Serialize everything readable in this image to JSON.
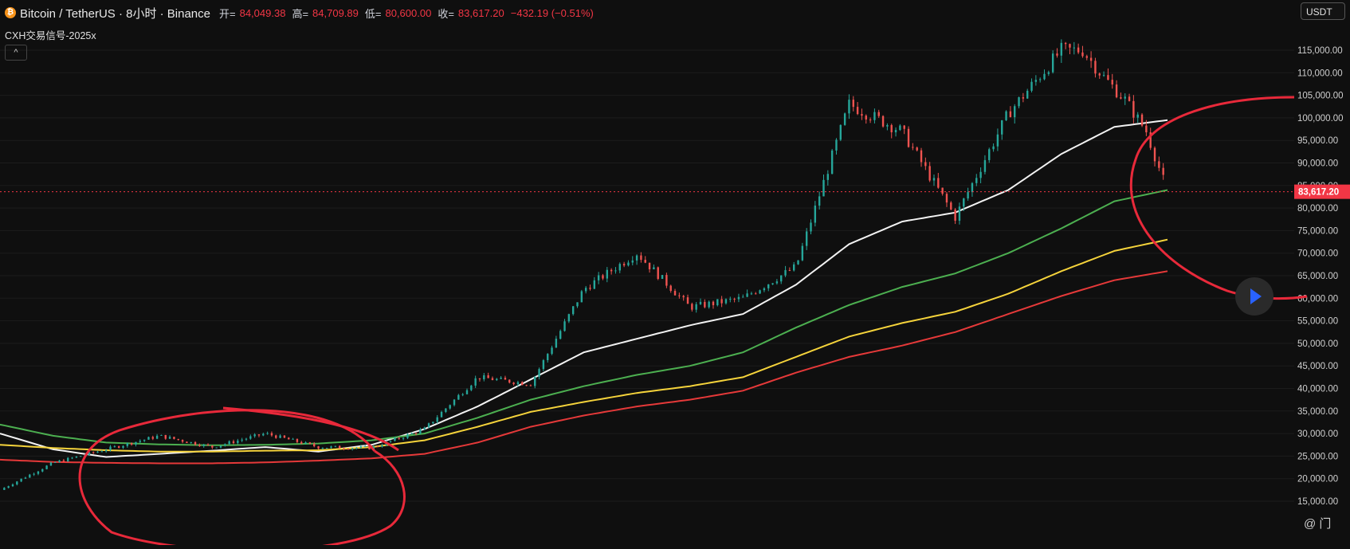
{
  "header": {
    "title": "Bitcoin / TetherUS · 8小时 · Binance",
    "open_label": "开=",
    "open": "84,049.38",
    "high_label": "高=",
    "high": "84,709.89",
    "low_label": "低=",
    "low": "80,600.00",
    "close_label": "收=",
    "close": "83,617.20",
    "change": "−432.19 (−0.51%)"
  },
  "indicator_label": "CXH交易信号-2025x",
  "collapse_glyph": "^",
  "currency": "USDT",
  "watermark": "@ 门",
  "colors": {
    "background": "#0f0f0f",
    "up": "#26a69a",
    "down": "#ef5350",
    "ma_white": "#f2f2f2",
    "ma_green": "#4caf50",
    "ma_yellow": "#f5d33b",
    "ma_red": "#e53939",
    "annotation": "#e8293a",
    "price_tag": "#f23645"
  },
  "chart_data": {
    "type": "line",
    "title": "",
    "xlabel": "",
    "ylabel": "",
    "ylim": [
      15000,
      120000
    ],
    "y_ticks": [
      "15,000.00",
      "20,000.00",
      "25,000.00",
      "30,000.00",
      "35,000.00",
      "40,000.00",
      "45,000.00",
      "50,000.00",
      "55,000.00",
      "60,000.00",
      "65,000.00",
      "70,000.00",
      "75,000.00",
      "80,000.00",
      "85,000.00",
      "90,000.00",
      "95,000.00",
      "100,000.00",
      "105,000.00",
      "110,000.00",
      "115,000.00"
    ],
    "y_tick_values": [
      15000,
      20000,
      25000,
      30000,
      35000,
      40000,
      45000,
      50000,
      55000,
      60000,
      65000,
      70000,
      75000,
      80000,
      85000,
      90000,
      95000,
      100000,
      105000,
      110000,
      115000
    ],
    "last_price_label": "83,617.20",
    "last_price": 83617.2,
    "x_index": [
      0,
      5,
      10,
      15,
      20,
      25,
      30,
      35,
      40,
      45,
      50,
      55,
      60,
      65,
      70,
      75,
      80,
      85,
      90,
      95,
      100
    ],
    "price": [
      17500,
      23500,
      26500,
      29500,
      27000,
      30000,
      27000,
      26800,
      31000,
      42500,
      41000,
      62000,
      70000,
      58000,
      60000,
      67000,
      103000,
      97000,
      78000,
      101000,
      115000
    ],
    "price_tail": {
      "x": [
        100,
        102,
        104,
        106,
        108,
        110
      ],
      "values": [
        117000,
        115000,
        109000,
        104000,
        97000,
        83600
      ]
    },
    "series": [
      {
        "color": "#f2f2f2",
        "x": [
          0,
          5,
          10,
          15,
          20,
          25,
          30,
          35,
          40,
          45,
          50,
          55,
          60,
          65,
          70,
          75,
          80,
          85,
          90,
          95,
          100,
          105,
          110
        ],
        "values": [
          30000,
          26500,
          24800,
          25500,
          26200,
          27000,
          26000,
          27500,
          31000,
          36000,
          42000,
          48000,
          51000,
          54000,
          56500,
          63000,
          72000,
          77000,
          79000,
          84000,
          92000,
          98000,
          99500
        ]
      },
      {
        "color": "#4caf50",
        "x": [
          0,
          5,
          10,
          15,
          20,
          25,
          30,
          35,
          40,
          45,
          50,
          55,
          60,
          65,
          70,
          75,
          80,
          85,
          90,
          95,
          100,
          105,
          110
        ],
        "values": [
          32000,
          29500,
          28000,
          27600,
          27400,
          27500,
          27800,
          28500,
          30000,
          33500,
          37500,
          40500,
          43000,
          45000,
          48000,
          53500,
          58500,
          62500,
          65500,
          70000,
          75500,
          81500,
          84000
        ]
      },
      {
        "color": "#f5d33b",
        "x": [
          0,
          5,
          10,
          15,
          20,
          25,
          30,
          35,
          40,
          45,
          50,
          55,
          60,
          65,
          70,
          75,
          80,
          85,
          90,
          95,
          100,
          105,
          110
        ],
        "values": [
          27500,
          26800,
          26300,
          26000,
          26000,
          26200,
          26300,
          27000,
          28500,
          31500,
          34800,
          37000,
          39000,
          40500,
          42500,
          47000,
          51500,
          54500,
          57000,
          61000,
          66000,
          70500,
          73000
        ]
      },
      {
        "color": "#e53939",
        "x": [
          0,
          5,
          10,
          15,
          20,
          25,
          30,
          35,
          40,
          45,
          50,
          55,
          60,
          65,
          70,
          75,
          80,
          85,
          90,
          95,
          100,
          105,
          110
        ],
        "values": [
          24200,
          23700,
          23500,
          23400,
          23400,
          23600,
          24000,
          24500,
          25500,
          28000,
          31500,
          34000,
          36000,
          37500,
          39500,
          43500,
          47000,
          49500,
          52500,
          56500,
          60500,
          64000,
          66000
        ]
      }
    ]
  }
}
